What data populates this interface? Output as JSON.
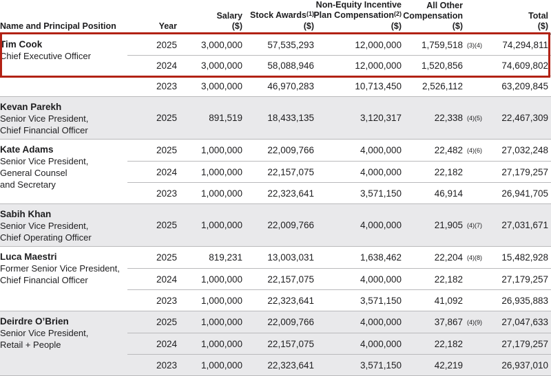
{
  "table": {
    "columns": [
      {
        "id": "name",
        "lines": [
          {
            "t": "Name and Principal Position"
          }
        ]
      },
      {
        "id": "year",
        "lines": [
          {
            "t": "Year"
          }
        ]
      },
      {
        "id": "salary",
        "lines": [
          {
            "t": "Salary"
          },
          {
            "t": "($)"
          }
        ]
      },
      {
        "id": "stock",
        "lines": [
          {
            "t": "Stock Awards",
            "sup": "(1)"
          },
          {
            "t": "($)"
          }
        ]
      },
      {
        "id": "neip",
        "lines": [
          {
            "t": "Non-Equity Incentive"
          },
          {
            "t": "Plan Compensation",
            "sup": "(2)"
          },
          {
            "t": "($)"
          }
        ]
      },
      {
        "id": "other",
        "lines": [
          {
            "t": "All Other"
          },
          {
            "t": "Compensation"
          },
          {
            "t": "($)"
          }
        ]
      },
      {
        "id": "total",
        "lines": [
          {
            "t": "Total"
          },
          {
            "t": "($)"
          }
        ]
      }
    ],
    "sections": [
      {
        "name": "Tim Cook",
        "title_lines": [
          "Chief Executive Officer"
        ],
        "shaded": false,
        "rows": [
          {
            "year": "2025",
            "salary": "3,000,000",
            "stock": "57,535,293",
            "neip": "12,000,000",
            "other": "1,759,518",
            "other_sup": "(3)(4)",
            "total": "74,294,811"
          },
          {
            "year": "2024",
            "salary": "3,000,000",
            "stock": "58,088,946",
            "neip": "12,000,000",
            "other": "1,520,856",
            "total": "74,609,802"
          },
          {
            "year": "2023",
            "salary": "3,000,000",
            "stock": "46,970,283",
            "neip": "10,713,450",
            "other": "2,526,112",
            "total": "63,209,845"
          }
        ]
      },
      {
        "name": "Kevan Parekh",
        "title_lines": [
          "Senior Vice President,",
          "Chief Financial Officer"
        ],
        "shaded": true,
        "rows": [
          {
            "year": "2025",
            "salary": "891,519",
            "stock": "18,433,135",
            "neip": "3,120,317",
            "other": "22,338",
            "other_sup": "(4)(5)",
            "total": "22,467,309"
          }
        ]
      },
      {
        "name": "Kate Adams",
        "title_lines": [
          "Senior Vice President,",
          "General Counsel",
          "and Secretary"
        ],
        "shaded": false,
        "rows": [
          {
            "year": "2025",
            "salary": "1,000,000",
            "stock": "22,009,766",
            "neip": "4,000,000",
            "other": "22,482",
            "other_sup": "(4)(6)",
            "total": "27,032,248"
          },
          {
            "year": "2024",
            "salary": "1,000,000",
            "stock": "22,157,075",
            "neip": "4,000,000",
            "other": "22,182",
            "total": "27,179,257"
          },
          {
            "year": "2023",
            "salary": "1,000,000",
            "stock": "22,323,641",
            "neip": "3,571,150",
            "other": "46,914",
            "total": "26,941,705"
          }
        ]
      },
      {
        "name": "Sabih Khan",
        "title_lines": [
          "Senior Vice President,",
          "Chief Operating Officer"
        ],
        "shaded": true,
        "rows": [
          {
            "year": "2025",
            "salary": "1,000,000",
            "stock": "22,009,766",
            "neip": "4,000,000",
            "other": "21,905",
            "other_sup": "(4)(7)",
            "total": "27,031,671"
          }
        ]
      },
      {
        "name": "Luca Maestri",
        "title_lines": [
          "Former Senior Vice President,",
          "Chief Financial Officer"
        ],
        "shaded": false,
        "rows": [
          {
            "year": "2025",
            "salary": "819,231",
            "stock": "13,003,031",
            "neip": "1,638,462",
            "other": "22,204",
            "other_sup": "(4)(8)",
            "total": "15,482,928"
          },
          {
            "year": "2024",
            "salary": "1,000,000",
            "stock": "22,157,075",
            "neip": "4,000,000",
            "other": "22,182",
            "total": "27,179,257"
          },
          {
            "year": "2023",
            "salary": "1,000,000",
            "stock": "22,323,641",
            "neip": "3,571,150",
            "other": "41,092",
            "total": "26,935,883"
          }
        ]
      },
      {
        "name": "Deirdre O’Brien",
        "title_lines": [
          "Senior Vice President,",
          "Retail + People"
        ],
        "shaded": true,
        "rows": [
          {
            "year": "2025",
            "salary": "1,000,000",
            "stock": "22,009,766",
            "neip": "4,000,000",
            "other": "37,867",
            "other_sup": "(4)(9)",
            "total": "27,047,633"
          },
          {
            "year": "2024",
            "salary": "1,000,000",
            "stock": "22,157,075",
            "neip": "4,000,000",
            "other": "22,182",
            "total": "27,179,257"
          },
          {
            "year": "2023",
            "salary": "1,000,000",
            "stock": "22,323,641",
            "neip": "3,571,150",
            "other": "42,219",
            "total": "26,937,010"
          }
        ]
      }
    ]
  },
  "annotation": {
    "type": "highlight-box",
    "color": "#b22215",
    "covers": "Tim Cook 2025 and 2024 rows"
  }
}
